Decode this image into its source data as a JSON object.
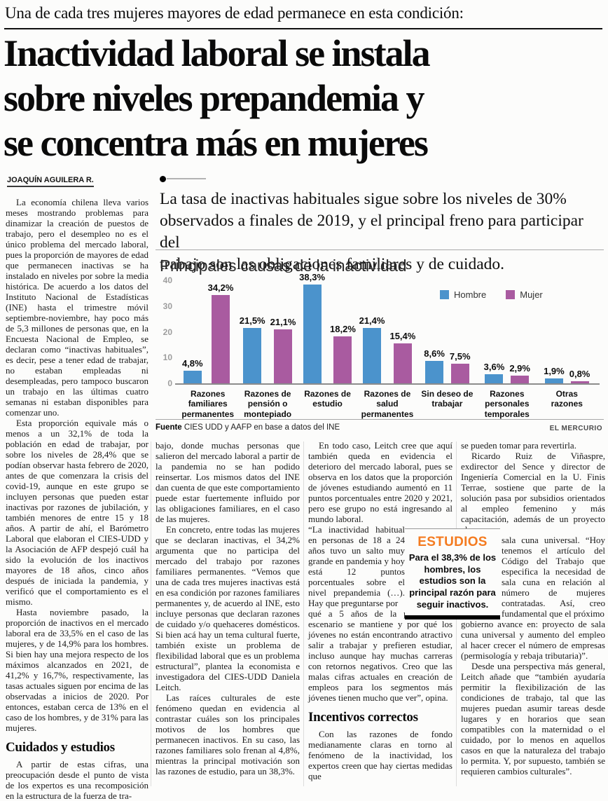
{
  "page": {
    "kicker": "Una de cada tres mujeres mayores de edad permanece en esta condición:",
    "headline": "Inactividad laboral se instala\nsobre niveles prepandemia y\nse concentra más en mujeres",
    "byline": "JOAQUÍN AGUILERA R.",
    "lead": "La tasa de inactivas habituales sigue sobre los niveles de 30%\nobservados a finales de 2019, y el principal freno para participar del\ntrabajo son las obligaciones familiares y de cuidado."
  },
  "chart": {
    "title": "Principales causas de la inactividad",
    "source_label": "Fuente",
    "source_text": " CIES UDD y AAFP en base a datos del INE",
    "credit": "EL MERCURIO",
    "colors": {
      "hombre": "#4b93cc",
      "mujer": "#a95ba0"
    }
  },
  "chart_data": {
    "type": "bar",
    "title": "Principales causas de la inactividad",
    "categories": [
      "Razones familiares permanentes",
      "Razones de pensión o montepiado",
      "Razones de estudio",
      "Razones de salud permanentes",
      "Sin deseo de trabajar",
      "Razones personales temporales",
      "Otras razones"
    ],
    "series": [
      {
        "name": "Hombre",
        "values": [
          4.8,
          21.5,
          38.3,
          21.4,
          8.6,
          3.6,
          1.9
        ]
      },
      {
        "name": "Mujer",
        "values": [
          34.2,
          21.1,
          18.2,
          15.4,
          7.5,
          2.9,
          0.8
        ]
      }
    ],
    "value_label_format": "percent-comma",
    "ylim": [
      0,
      40
    ],
    "yticks": [
      0,
      10,
      20,
      30,
      40
    ],
    "grid": false,
    "legend_position": "top-right",
    "xlabel": "",
    "ylabel": ""
  },
  "inset": {
    "heading": "ESTUDIOS",
    "text": "Para el 38,3% de los hombres, los estudios son la principal razón para seguir inactivos.",
    "accent": "#f47b20"
  },
  "body": {
    "col1": {
      "p1": "La economía chilena lleva varios meses mostrando problemas para dinamizar la creación de puestos de trabajo, pero el desempleo no es el único problema del mercado laboral, pues la proporción de mayores de edad que permanecen inactivas se ha instalado en niveles por sobre la media histórica. De acuerdo a los datos del Instituto Nacional de Estadísticas (INE) hasta el trimestre móvil septiembre-noviembre, hay poco más de 5,3 millones de personas que, en la Encuesta Nacional de Empleo, se declaran como “inactivas habituales”, es decir, pese a tener edad de trabajar, no estaban empleadas ni desempleadas, pero tampoco buscaron un trabajo en las últimas cuatro semanas ni estaban disponibles para comenzar uno.",
      "p2": "Esta proporción equivale más o menos a un 32,1% de toda la población en edad de trabajar, por sobre los niveles de 28,4% que se podían observar hasta febrero de 2020, antes de que comenzara la crisis del covid-19, aunque en este grupo se incluyen personas que pueden estar inactivas por razones de jubilación, y también menores de entre 15 y 18 años. A partir de ahí, el Barómetro Laboral que elaboran el CIES-UDD y la Asociación de AFP despejó cuál ha sido la evolución de los inactivos mayores de 18 años, cinco años después de iniciada la pandemia, y verificó que el comportamiento es el mismo.",
      "p3": "Hasta noviembre pasado, la proporción de inactivos en el mercado laboral era de 33,5% en el caso de las mujeres, y de 14,9% para los hombres. Si bien hay una mejora respecto de los máximos alcanzados en 2021, de 41,2% y 16,7%, respectivamente, las tasas actuales siguen por encima de las observadas a inicios de 2020. Por entonces, estaban cerca de 13% en el caso de los hombres, y de 31% para las mujeres.",
      "subhead": "Cuidados y estudios",
      "p4": "A partir de estas cifras, una preocupación desde el punto de vista de los expertos es una recomposición en la estructura de la fuerza de tra-"
    },
    "col2": {
      "p1": "bajo, donde muchas personas que salieron del mercado laboral a partir de la pandemia no se han podido reinsertar. Los mismos datos del INE dan cuenta de que este comportamiento puede estar fuertemente influido por las obligaciones familiares, en el caso de las mujeres.",
      "p2": "En concreto, entre todas las mujeres que se declaran inactivas, el 34,2% argumenta que no participa del mercado del trabajo por razones familiares permanentes. “Vemos que una de cada tres mujeres inactivas está en esa condición por razones familiares permanentes y, de acuerdo al INE, esto incluye personas que declaran razones de cuidado y/o quehaceres domésticos. Si bien acá hay un tema cultural fuerte, también existe un problema de flexibilidad laboral que es un problema estructural”, plantea la economista e investigadora del CIES-UDD Daniela Leitch.",
      "p3": "Las raíces culturales de este fenómeno quedan en evidencia al contrastar cuáles son los principales motivos de los hombres que permanecen inactivos. En su caso, las razones familiares solo frenan al 4,8%, mientras la principal motivación son las razones de estudio, para un 38,3%."
    },
    "col3": {
      "p1": "En todo caso, Leitch cree que aquí también queda en evidencia el deterioro del mercado laboral, pues se observa en los datos que la proporción de jóvenes estudiando aumentó en 11 puntos porcentuales entre 2020 y 2021, pero ese grupo no está ingresando al mundo laboral.",
      "narrow": "“La inactividad habitual en personas de 18 a 24 años tuvo un salto muy grande en pandemia y hoy está 12 puntos porcentuales sobre el nivel prepandemia (…). Hay que preguntarse por",
      "p2": "qué a 5 años de la pandemia el escenario se mantiene y por qué los jóvenes no están encontrando atractivo salir a trabajar y prefieren estudiar, incluso aunque hay muchas carreras con retornos negativos. Creo que las malas cifras actuales en creación de empleos para los segmentos más jóvenes tienen mucho que ver”, opina.",
      "subhead": "Incentivos correctos",
      "p3": "Con las razones de fondo medianamente claras en torno al fenómeno de la inactividad, los expertos creen que hay ciertas medidas que"
    },
    "col4": {
      "p1": "se pueden tomar para revertirla.",
      "p2": "Ricardo Ruiz de Viñaspre, exdirector del Sence y director de Ingeniería Comercial en la U. Finis Terrae, sostiene que parte de la solución pasa por subsidios orientados al empleo femenino y más capacitación, además de un proyecto clave:",
      "narrow": "sala cuna universal. “Hoy tenemos el artículo del Código del Trabajo que especifica la necesidad de sala cuna en relación al número de mujeres contratadas. Así, creo fundamental que el próximo",
      "p3": "gobierno avance en: proyecto de sala cuna universal y aumento del empleo al hacer crecer el número de empresas (permisología y rebaja tributaria)”.",
      "p4": "Desde una perspectiva más general, Leitch añade que “también ayudaría permitir la flexibilización de las condiciones de trabajo, tal que las mujeres puedan asumir tareas desde lugares y en horarios que sean compatibles con la maternidad o el cuidado, por lo menos en aquellos casos en que la naturaleza del trabajo lo permita. Y, por supuesto, también se requieren cambios culturales”."
    }
  }
}
